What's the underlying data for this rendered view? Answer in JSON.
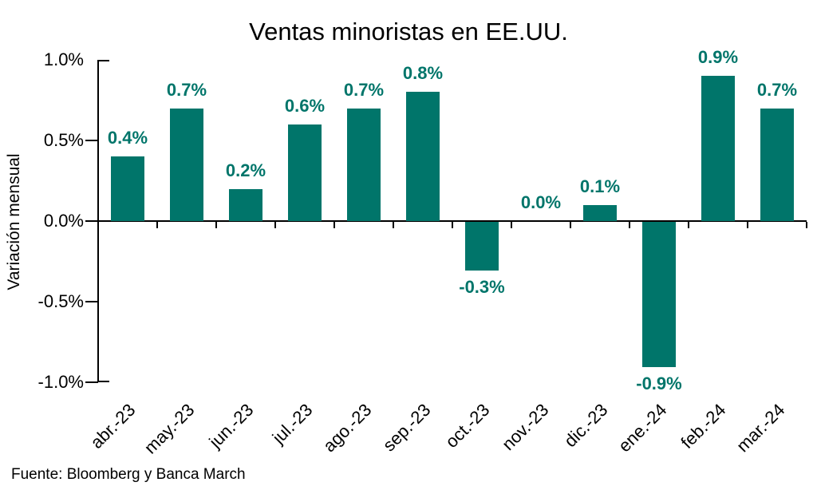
{
  "chart_data": {
    "type": "bar",
    "title": "Ventas minoristas en EE.UU.",
    "xlabel": "",
    "ylabel": "Variación mensual",
    "categories": [
      "abr.-23",
      "may.-23",
      "jun.-23",
      "jul.-23",
      "ago.-23",
      "sep.-23",
      "oct.-23",
      "nov.-23",
      "dic.-23",
      "ene.-24",
      "feb.-24",
      "mar.-24"
    ],
    "values": [
      0.4,
      0.7,
      0.2,
      0.6,
      0.7,
      0.8,
      -0.3,
      0.0,
      0.1,
      -0.9,
      0.9,
      0.7
    ],
    "data_labels": [
      "0.4%",
      "0.7%",
      "0.2%",
      "0.6%",
      "0.7%",
      "0.8%",
      "-0.3%",
      "0.0%",
      "0.1%",
      "-0.9%",
      "0.9%",
      "0.7%"
    ],
    "ylim": [
      -1.0,
      1.0
    ],
    "y_ticks": [
      "1.0%",
      "0.5%",
      "0.0%",
      "-0.5%",
      "-1.0%"
    ],
    "y_tick_values": [
      1.0,
      0.5,
      0.0,
      -0.5,
      -1.0
    ],
    "grid": false,
    "legend": false,
    "bar_color": "#00756A",
    "label_color": "#00756A",
    "axis_color": "#000000"
  },
  "footer": {
    "source": "Fuente: Bloomberg y Banca March"
  }
}
